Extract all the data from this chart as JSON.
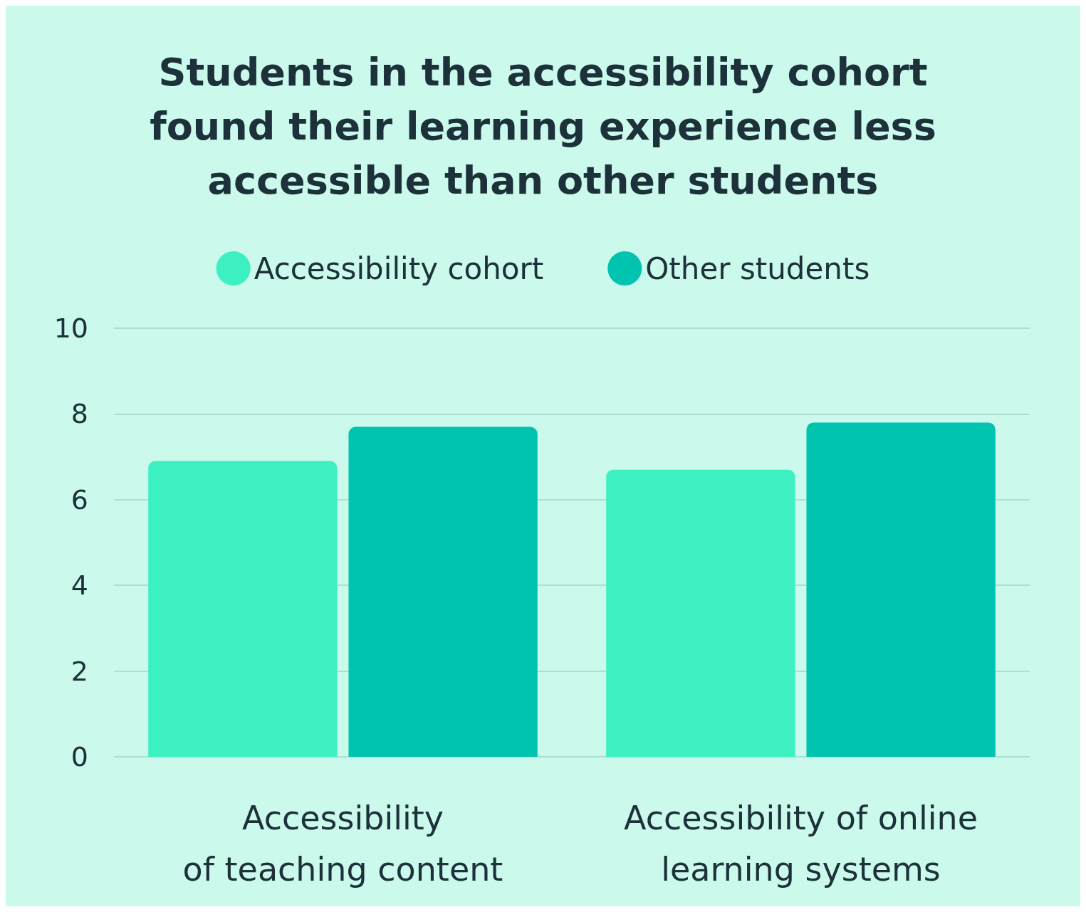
{
  "chart_data": {
    "type": "bar",
    "title": "Students in the accessibility cohort\nfound their learning experience less\naccessible than other students",
    "categories": [
      "Accessibility\nof teaching content",
      "Accessibility of online\nlearning systems"
    ],
    "series": [
      {
        "name": "Accessibility cohort",
        "color": "#3df0c2",
        "values": [
          6.9,
          6.7
        ]
      },
      {
        "name": "Other students",
        "color": "#00c4b0",
        "values": [
          7.7,
          7.8
        ]
      }
    ],
    "ylim": [
      0,
      10
    ],
    "yticks": [
      0,
      2,
      4,
      6,
      8,
      10
    ],
    "grid": "y",
    "legend": "top"
  }
}
